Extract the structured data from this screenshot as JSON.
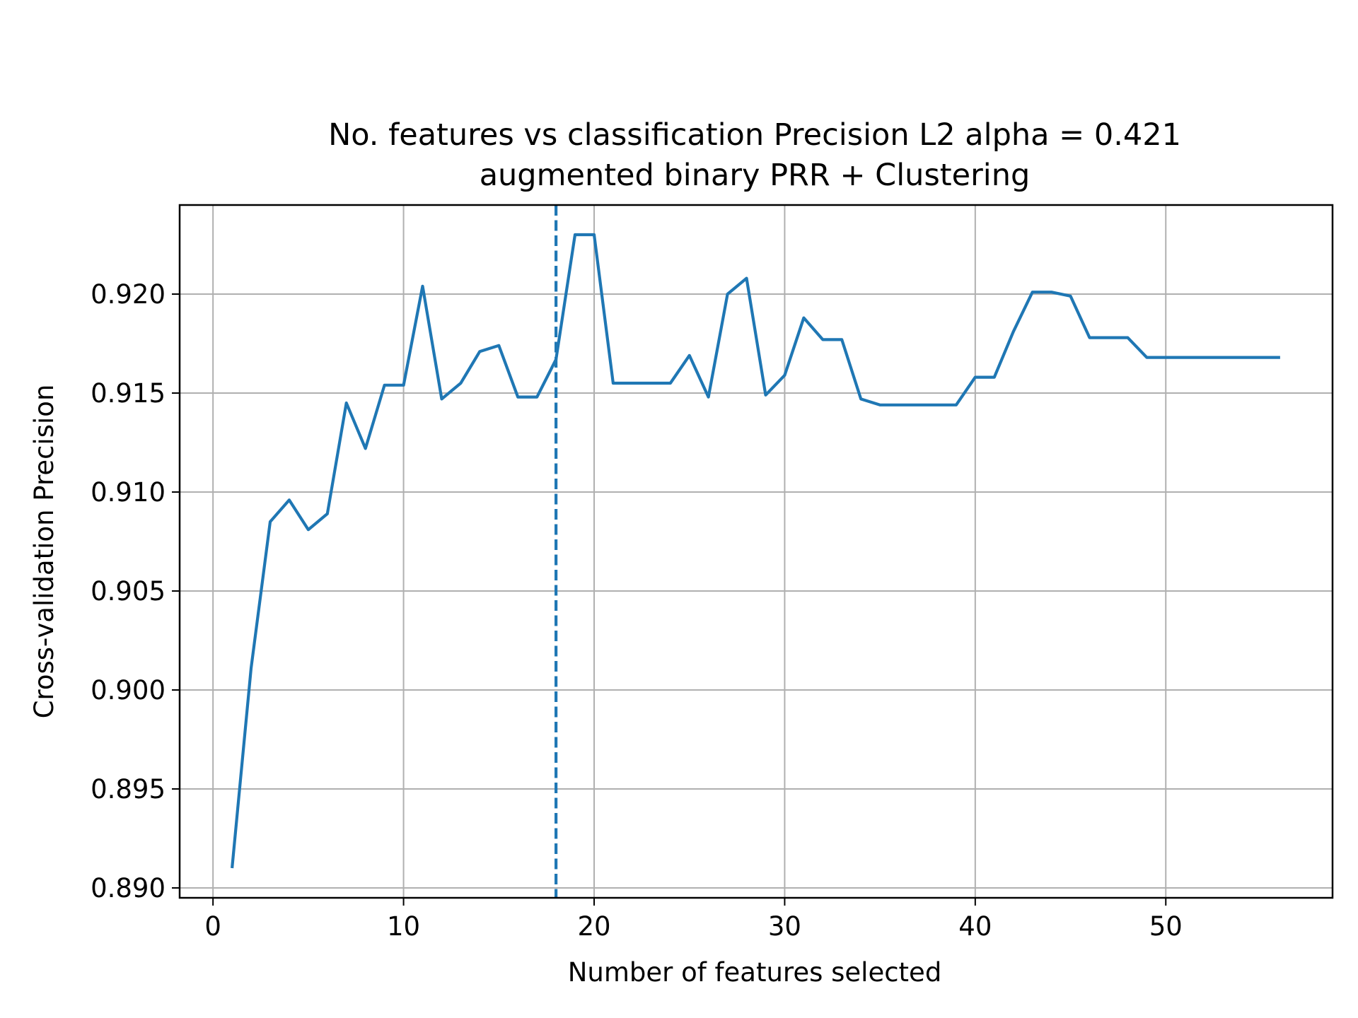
{
  "chart_data": {
    "type": "line",
    "title": "No. features vs classification Precision L2 alpha = 0.421",
    "subtitle": "augmented binary PRR + Clustering",
    "xlabel": "Number of features selected",
    "ylabel": "Cross-validation Precision",
    "xlim": [
      -1.75,
      58.75
    ],
    "ylim": [
      0.8895,
      0.9245
    ],
    "xticks": [
      0,
      10,
      20,
      30,
      40,
      50
    ],
    "xtick_labels": [
      "0",
      "10",
      "20",
      "30",
      "40",
      "50"
    ],
    "yticks": [
      0.89,
      0.895,
      0.9,
      0.905,
      0.91,
      0.915,
      0.92
    ],
    "ytick_labels": [
      "0.890",
      "0.895",
      "0.900",
      "0.905",
      "0.910",
      "0.915",
      "0.920"
    ],
    "grid": true,
    "line_color": "#1f77b4",
    "vline": {
      "x": 18,
      "style": "dashed",
      "color": "#1f77b4"
    },
    "series": [
      {
        "x": [
          1,
          2,
          3,
          4,
          5,
          6,
          7,
          8,
          9,
          10,
          11,
          12,
          13,
          14,
          15,
          16,
          17,
          18,
          19,
          20,
          21,
          22,
          23,
          24,
          25,
          26,
          27,
          28,
          29,
          30,
          31,
          32,
          33,
          34,
          35,
          36,
          37,
          38,
          39,
          40,
          41,
          42,
          43,
          44,
          45,
          46,
          47,
          48,
          49,
          50,
          51,
          52,
          53,
          54,
          55,
          56
        ],
        "y": [
          0.891,
          0.9011,
          0.9085,
          0.9096,
          0.9081,
          0.9089,
          0.9145,
          0.9122,
          0.9154,
          0.9154,
          0.9204,
          0.9147,
          0.9155,
          0.9171,
          0.9174,
          0.9148,
          0.9148,
          0.9167,
          0.923,
          0.923,
          0.9155,
          0.9155,
          0.9155,
          0.9155,
          0.9169,
          0.9148,
          0.92,
          0.9208,
          0.9149,
          0.9159,
          0.9188,
          0.9177,
          0.9177,
          0.9147,
          0.9144,
          0.9144,
          0.9144,
          0.9144,
          0.9144,
          0.9158,
          0.9158,
          0.9181,
          0.9201,
          0.9201,
          0.9199,
          0.9178,
          0.9178,
          0.9178,
          0.9168,
          0.9168,
          0.9168,
          0.9168,
          0.9168,
          0.9168,
          0.9168,
          0.9168
        ]
      }
    ]
  }
}
